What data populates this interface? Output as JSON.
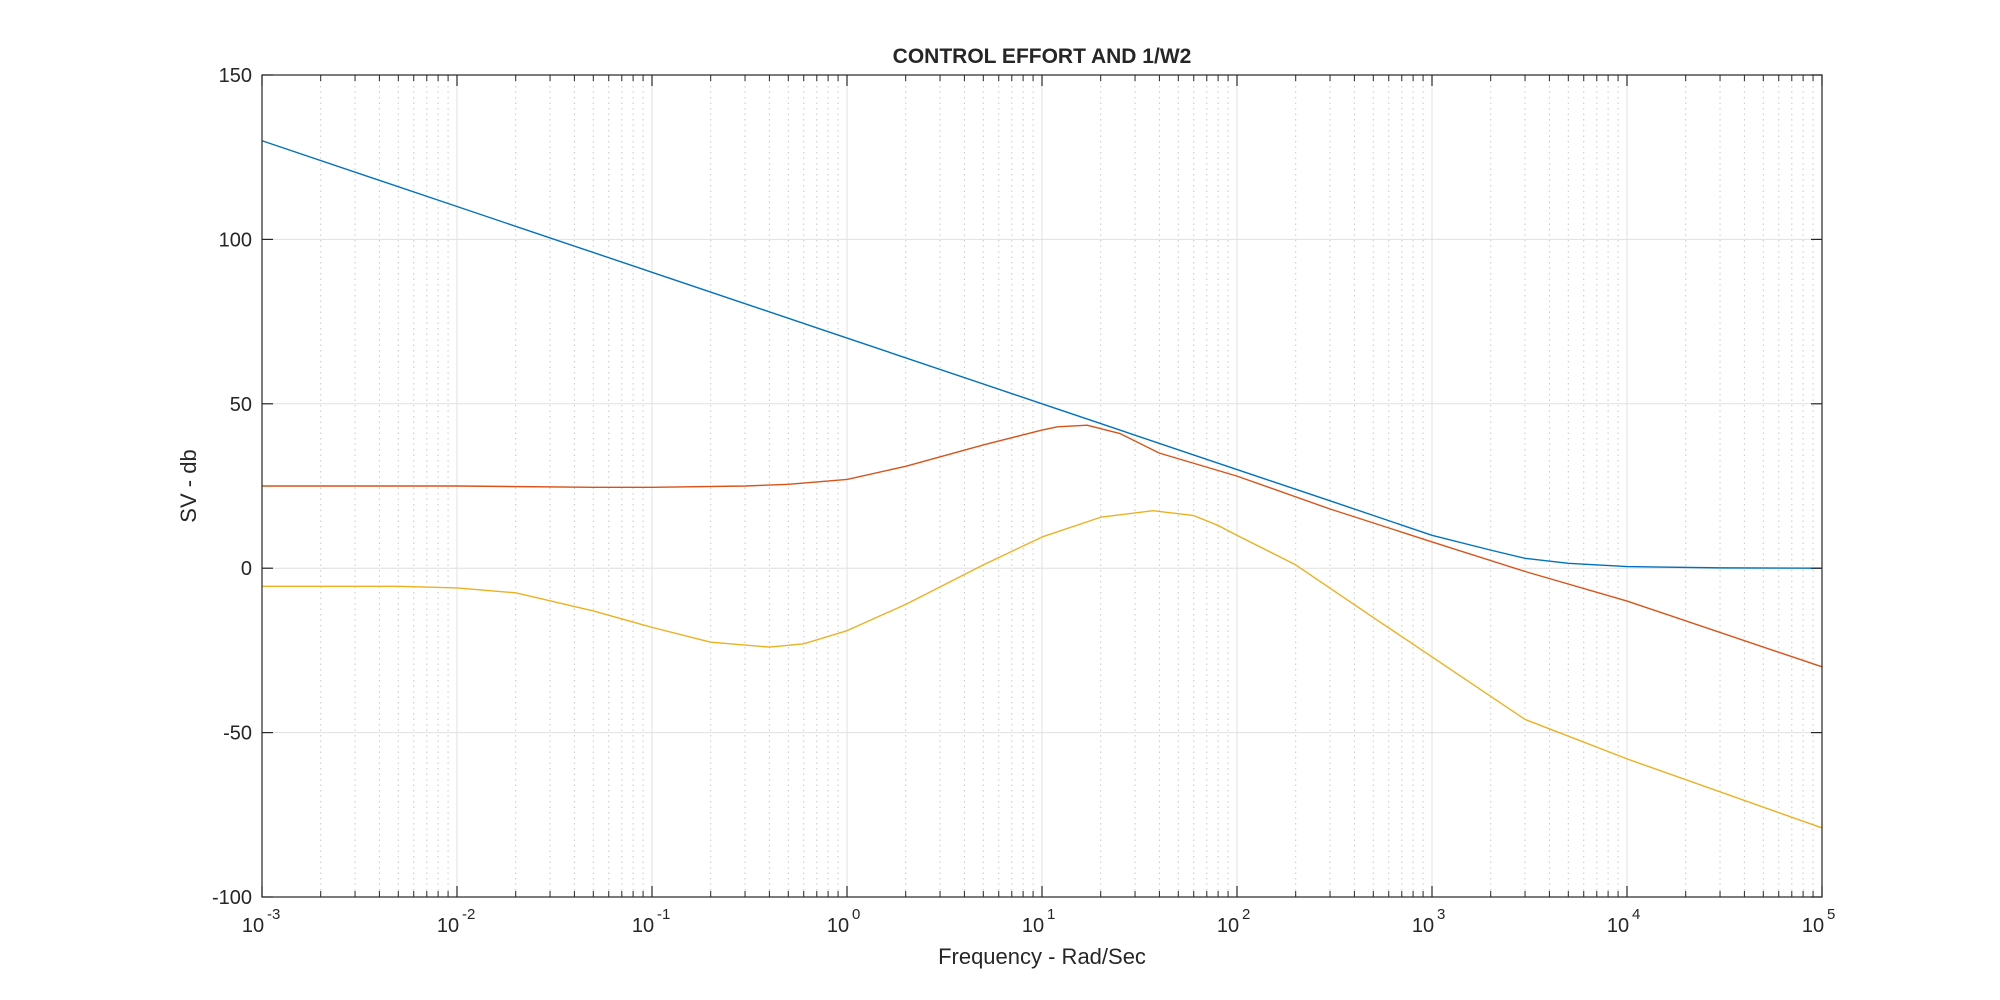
{
  "chart_data": {
    "type": "line",
    "title": "CONTROL EFFORT AND 1/W2",
    "xlabel": "Frequency - Rad/Sec",
    "ylabel": "SV - db",
    "xscale": "log",
    "xlim": [
      0.001,
      100000
    ],
    "ylim": [
      -100,
      150
    ],
    "x_ticks": [
      0.001,
      0.01,
      0.1,
      1,
      10,
      100,
      1000,
      10000,
      100000
    ],
    "x_tick_exponents": [
      "-3",
      "-2",
      "-1",
      "0",
      "1",
      "2",
      "3",
      "4",
      "5"
    ],
    "x_tick_base": "10",
    "y_ticks": [
      -100,
      -50,
      0,
      50,
      100,
      150
    ],
    "y_tick_labels": [
      "-100",
      "-50",
      "0",
      "50",
      "100",
      "150"
    ],
    "grid": true,
    "minor_grid": true,
    "legend": "none",
    "series": [
      {
        "color": "#0072bd",
        "x": [
          0.001,
          0.01,
          0.1,
          1,
          10,
          20,
          50,
          100,
          300,
          1000,
          2000,
          3000,
          5000,
          10000,
          30000,
          100000
        ],
        "y": [
          130,
          110,
          90,
          70,
          50,
          44,
          36,
          30,
          20.5,
          10,
          5.5,
          3,
          1.5,
          0.5,
          0.1,
          0
        ]
      },
      {
        "color": "#d95319",
        "x": [
          0.001,
          0.01,
          0.05,
          0.1,
          0.3,
          0.5,
          1,
          2,
          5,
          10,
          12,
          17,
          25,
          40,
          100,
          300,
          1000,
          3000,
          10000,
          100000
        ],
        "y": [
          25,
          25,
          24.6,
          24.6,
          25,
          25.5,
          27,
          31,
          37.5,
          42,
          43,
          43.5,
          41,
          35,
          28,
          18,
          8,
          -1,
          -10,
          -30
        ]
      },
      {
        "color": "#edb120",
        "x": [
          0.001,
          0.005,
          0.01,
          0.02,
          0.05,
          0.1,
          0.2,
          0.4,
          0.6,
          1,
          2,
          5,
          10,
          20,
          37,
          60,
          80,
          100,
          200,
          500,
          1000,
          3000,
          10000,
          100000
        ],
        "y": [
          -5.5,
          -5.5,
          -6,
          -7.5,
          -13,
          -18,
          -22.5,
          -24,
          -23,
          -19,
          -11,
          1,
          9.5,
          15.5,
          17.5,
          16,
          13,
          10,
          1,
          -15,
          -27,
          -46,
          -58,
          -79
        ]
      }
    ]
  }
}
